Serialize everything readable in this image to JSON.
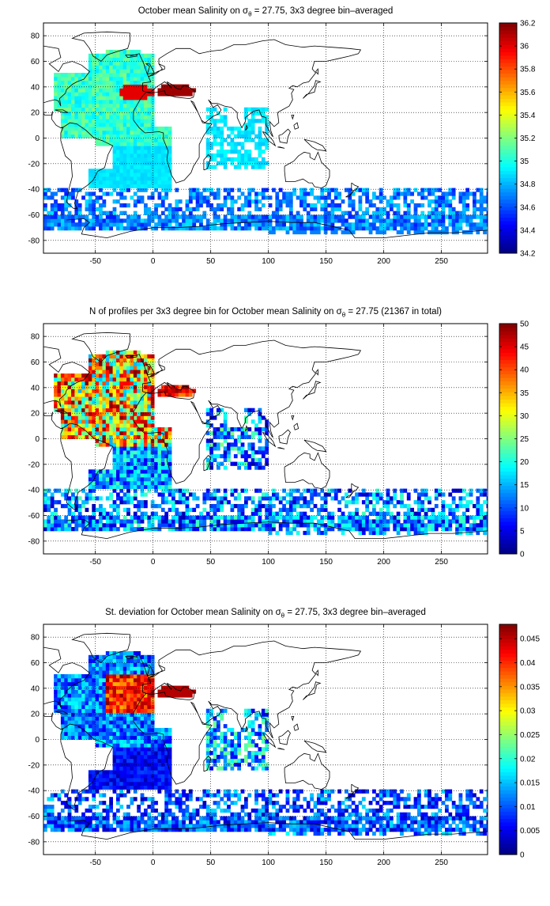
{
  "chart_data": [
    {
      "type": "heatmap",
      "title_pre": "October mean Salinity on ",
      "title_sym": "σ",
      "title_sub": "θ",
      "title_post": " = 27.75, 3x3 degree bin–averaged",
      "xlim": [
        -95,
        290
      ],
      "ylim": [
        -90,
        90
      ],
      "x_ticks": [
        "-50",
        "0",
        "50",
        "100",
        "150",
        "200",
        "250"
      ],
      "y_ticks": [
        "80",
        "60",
        "40",
        "20",
        "0",
        "-20",
        "-40",
        "-60",
        "-80"
      ],
      "colorbar": {
        "min": 34.2,
        "max": 36.2,
        "ticks": [
          "36.2",
          "36",
          "35.8",
          "35.6",
          "35.4",
          "35.2",
          "35",
          "34.8",
          "34.6",
          "34.4",
          "34.2"
        ]
      },
      "grid": true
    },
    {
      "type": "heatmap",
      "title_pre": "N of profiles per 3x3 degree bin for October mean Salinity on ",
      "title_sym": "σ",
      "title_sub": "θ",
      "title_post": " = 27.75 (21367 in total)",
      "xlim": [
        -95,
        290
      ],
      "ylim": [
        -90,
        90
      ],
      "x_ticks": [
        "-50",
        "0",
        "50",
        "100",
        "150",
        "200",
        "250"
      ],
      "y_ticks": [
        "80",
        "60",
        "40",
        "20",
        "0",
        "-20",
        "-40",
        "-60",
        "-80"
      ],
      "colorbar": {
        "min": 0,
        "max": 50,
        "ticks": [
          "50",
          "45",
          "40",
          "35",
          "30",
          "25",
          "20",
          "15",
          "10",
          "5",
          "0"
        ]
      },
      "grid": true
    },
    {
      "type": "heatmap",
      "title_pre": "St. deviation for October mean Salinity on ",
      "title_sym": "σ",
      "title_sub": "θ",
      "title_post": " = 27.75, 3x3 degree bin–averaged",
      "xlim": [
        -95,
        290
      ],
      "ylim": [
        -90,
        90
      ],
      "x_ticks": [
        "-50",
        "0",
        "50",
        "100",
        "150",
        "200",
        "250"
      ],
      "y_ticks": [
        "80",
        "60",
        "40",
        "20",
        "0",
        "-20",
        "-40",
        "-60",
        "-80"
      ],
      "colorbar": {
        "min": 0,
        "max": 0.048,
        "ticks": [
          "0.045",
          "0.04",
          "0.035",
          "0.03",
          "0.025",
          "0.02",
          "0.015",
          "0.01",
          "0.005",
          "0"
        ]
      },
      "grid": true
    }
  ]
}
